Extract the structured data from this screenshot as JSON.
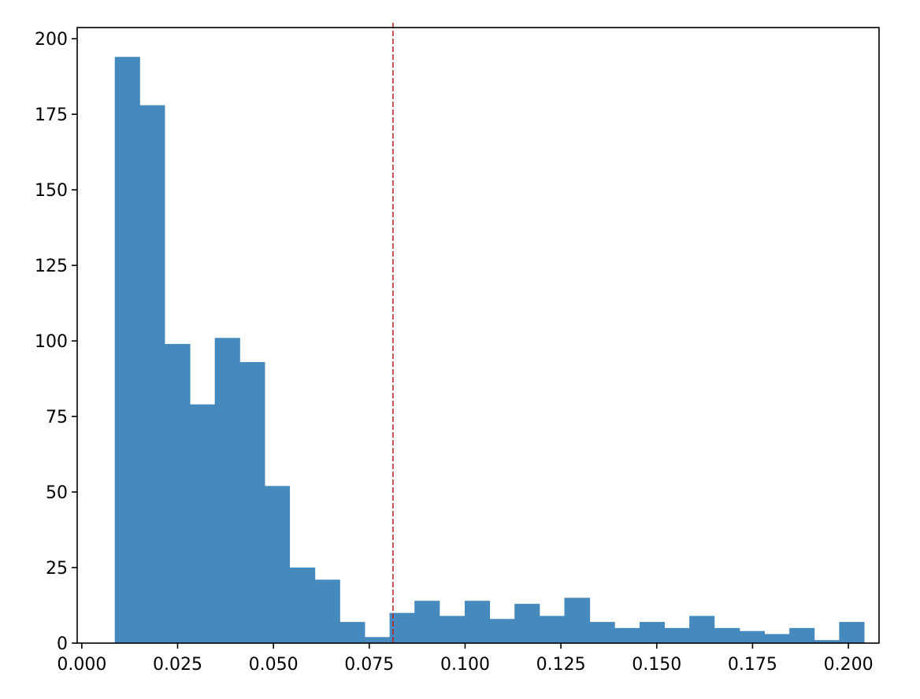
{
  "chart_data": {
    "type": "histogram",
    "bins": [
      0.0086,
      0.0151,
      0.0216,
      0.0282,
      0.0347,
      0.0412,
      0.0477,
      0.0542,
      0.0608,
      0.0673,
      0.0738,
      0.0803,
      0.0868,
      0.0933,
      0.0999,
      0.1064,
      0.1129,
      0.1194,
      0.1259,
      0.1325,
      0.139,
      0.1455,
      0.152,
      0.1585,
      0.165,
      0.1716,
      0.1781,
      0.1846,
      0.1911,
      0.1976,
      0.2041
    ],
    "values": [
      194,
      178,
      99,
      79,
      101,
      93,
      52,
      25,
      21,
      7,
      2,
      10,
      14,
      9,
      14,
      8,
      13,
      9,
      15,
      7,
      5,
      7,
      5,
      9,
      5,
      4,
      3,
      5,
      1,
      7
    ],
    "color": "#4689bd",
    "vline_x": 0.0812,
    "vline_color": "#b22222",
    "xlim": [
      -0.0012,
      0.208
    ],
    "xticks": [
      {
        "value": 0,
        "label": "0.000"
      },
      {
        "value": 0.025,
        "label": "0.025"
      },
      {
        "value": 0.05,
        "label": "0.050"
      },
      {
        "value": 0.075,
        "label": "0.075"
      },
      {
        "value": 0.1,
        "label": "0.100"
      },
      {
        "value": 0.125,
        "label": "0.125"
      },
      {
        "value": 0.15,
        "label": "0.150"
      },
      {
        "value": 0.175,
        "label": "0.175"
      },
      {
        "value": 0.2,
        "label": "0.200"
      }
    ],
    "ylim": [
      0,
      203.7
    ],
    "yticks": [
      0,
      25,
      50,
      75,
      100,
      125,
      150,
      175,
      200
    ]
  }
}
